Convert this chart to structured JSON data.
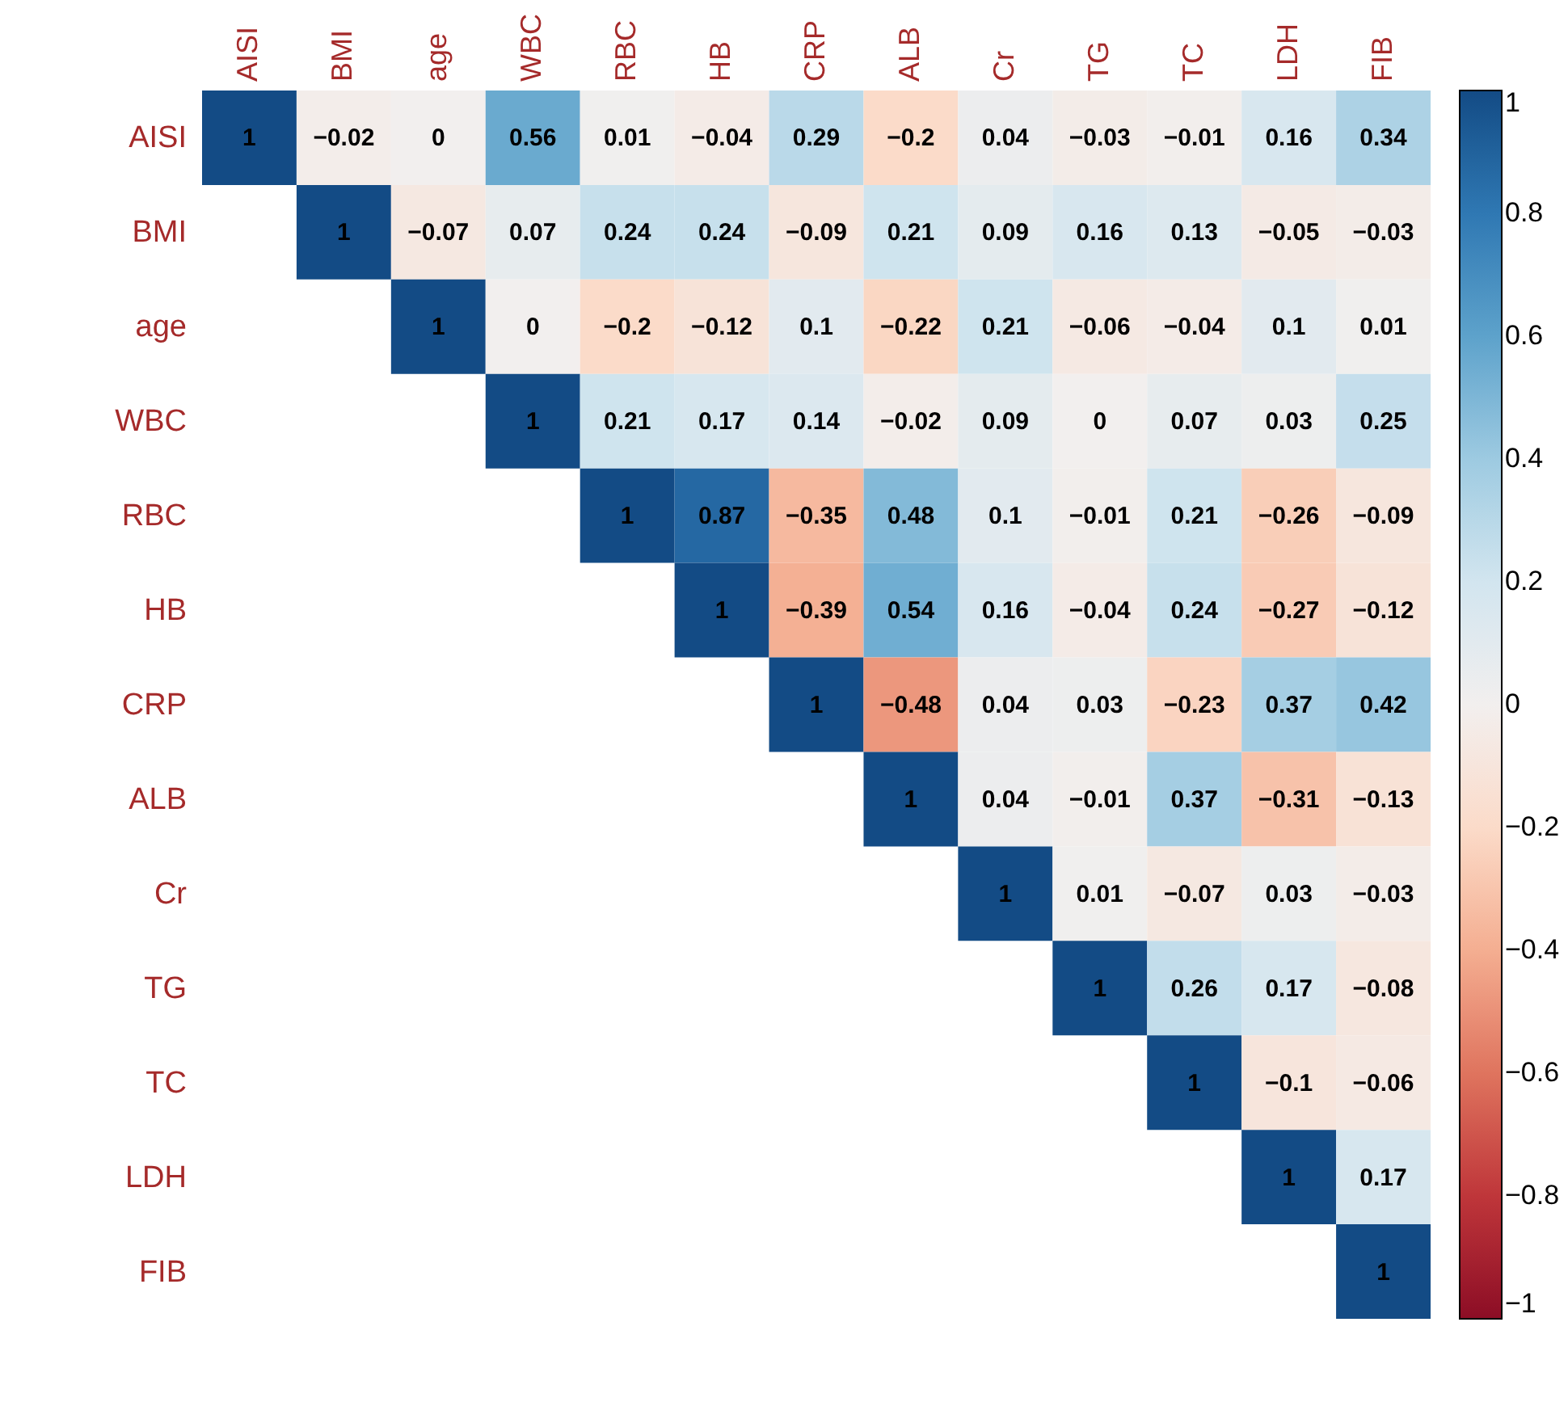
{
  "chart_data": {
    "type": "heatmap",
    "categories": [
      "AISI",
      "BMI",
      "age",
      "WBC",
      "RBC",
      "HB",
      "CRP",
      "ALB",
      "Cr",
      "TG",
      "TC",
      "LDH",
      "FIB"
    ],
    "y_categories": [
      "AISI",
      "BMI",
      "age",
      "WBC",
      "RBC",
      "HB",
      "CRP",
      "ALB",
      "Cr",
      "TG",
      "TC",
      "LDH",
      "FIB"
    ],
    "cells": [
      [
        1,
        -0.02,
        0,
        0.56,
        0.01,
        -0.04,
        0.29,
        -0.2,
        0.04,
        -0.03,
        -0.01,
        0.16,
        0.34
      ],
      [
        null,
        1,
        -0.07,
        0.07,
        0.24,
        0.24,
        -0.09,
        0.21,
        0.09,
        0.16,
        0.13,
        -0.05,
        -0.03
      ],
      [
        null,
        null,
        1,
        0,
        -0.2,
        -0.12,
        0.1,
        -0.22,
        0.21,
        -0.06,
        -0.04,
        0.1,
        0.01
      ],
      [
        null,
        null,
        null,
        1,
        0.21,
        0.17,
        0.14,
        -0.02,
        0.09,
        0,
        0.07,
        0.03,
        0.25
      ],
      [
        null,
        null,
        null,
        null,
        1,
        0.87,
        -0.35,
        0.48,
        0.1,
        -0.01,
        0.21,
        -0.26,
        -0.09
      ],
      [
        null,
        null,
        null,
        null,
        null,
        1,
        -0.39,
        0.54,
        0.16,
        -0.04,
        0.24,
        -0.27,
        -0.12
      ],
      [
        null,
        null,
        null,
        null,
        null,
        null,
        1,
        -0.48,
        0.04,
        0.03,
        -0.23,
        0.37,
        0.42
      ],
      [
        null,
        null,
        null,
        null,
        null,
        null,
        null,
        1,
        0.04,
        -0.01,
        0.37,
        -0.31,
        -0.13
      ],
      [
        null,
        null,
        null,
        null,
        null,
        null,
        null,
        null,
        1,
        0.01,
        -0.07,
        0.03,
        -0.03
      ],
      [
        null,
        null,
        null,
        null,
        null,
        null,
        null,
        null,
        null,
        1,
        0.26,
        0.17,
        -0.08
      ],
      [
        null,
        null,
        null,
        null,
        null,
        null,
        null,
        null,
        null,
        null,
        1,
        -0.1,
        -0.06
      ],
      [
        null,
        null,
        null,
        null,
        null,
        null,
        null,
        null,
        null,
        null,
        null,
        1,
        0.17
      ],
      [
        null,
        null,
        null,
        null,
        null,
        null,
        null,
        null,
        null,
        null,
        null,
        null,
        1
      ]
    ],
    "data_labels": true,
    "clim": [
      -1,
      1
    ],
    "cticks": [
      -1,
      -0.8,
      -0.6,
      -0.4,
      -0.2,
      0,
      0.2,
      0.4,
      0.6,
      0.8,
      1
    ]
  }
}
